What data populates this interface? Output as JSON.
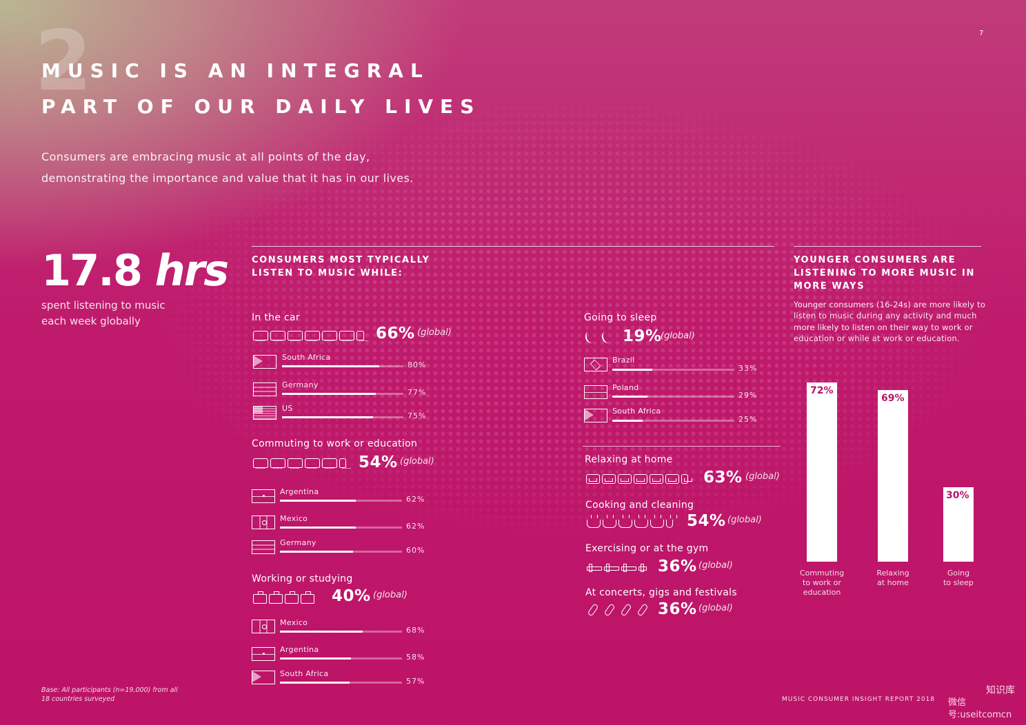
{
  "page": {
    "number": "7",
    "section_number": "2",
    "title_line1": "MUSIC IS AN INTEGRAL",
    "title_line2": "PART OF OUR DAILY LIVES",
    "intro_line1": "Consumers are embracing music at all points of the day,",
    "intro_line2": "demonstrating the importance and value that it has in our lives."
  },
  "headline_stat": {
    "value": "17.8",
    "unit": "hrs",
    "caption_line1": "spent listening to music",
    "caption_line2": "each week globally"
  },
  "activities": {
    "header_line1": "CONSUMERS MOST TYPICALLY",
    "header_line2": "LISTEN TO MUSIC WHILE:",
    "global_suffix": "(global)",
    "car": {
      "label": "In the car",
      "pct": "66%",
      "icon": "car-icon",
      "rows": [
        {
          "country": "South Africa",
          "pct_text": "80%"
        },
        {
          "country": "Germany",
          "pct_text": "77%"
        },
        {
          "country": "US",
          "pct_text": "75%"
        }
      ]
    },
    "commute": {
      "label": "Commuting to work or education",
      "pct": "54%",
      "icon": "train-icon",
      "rows": [
        {
          "country": "Argentina",
          "pct_text": "62%"
        },
        {
          "country": "Mexico",
          "pct_text": "62%"
        },
        {
          "country": "Germany",
          "pct_text": "60%"
        }
      ]
    },
    "working": {
      "label": "Working or studying",
      "pct": "40%",
      "icon": "briefcase-icon",
      "rows": [
        {
          "country": "Mexico",
          "pct_text": "68%"
        },
        {
          "country": "Argentina",
          "pct_text": "58%"
        },
        {
          "country": "South Africa",
          "pct_text": "57%"
        }
      ]
    },
    "sleep": {
      "label": "Going to sleep",
      "pct": "19%",
      "icon": "moon-icon",
      "rows": [
        {
          "country": "Brazil",
          "pct_text": "33%"
        },
        {
          "country": "Poland",
          "pct_text": "29%"
        },
        {
          "country": "South Africa",
          "pct_text": "25%"
        }
      ]
    },
    "relaxing": {
      "label": "Relaxing at home",
      "pct": "63%",
      "icon": "sofa-icon"
    },
    "cooking": {
      "label": "Cooking and cleaning",
      "pct": "54%",
      "icon": "pot-icon"
    },
    "exercise": {
      "label": "Exercising or at the gym",
      "pct": "36%",
      "icon": "dumbbell-icon"
    },
    "concerts": {
      "label": "At concerts, gigs and festivals",
      "pct": "36%",
      "icon": "microphone-icon"
    }
  },
  "younger": {
    "header_line1": "YOUNGER CONSUMERS ARE",
    "header_line2": "LISTENING TO MORE MUSIC IN",
    "header_line3": "MORE WAYS",
    "description": "Younger consumers (16-24s) are more likely to listen to music during any activity and much more likely to listen on their way to work or education or while at work or education."
  },
  "chart_data": [
    {
      "type": "bar",
      "title": "In the car",
      "categories": [
        "South Africa",
        "Germany",
        "US"
      ],
      "values": [
        80,
        77,
        75
      ],
      "unit": "%",
      "global": 66
    },
    {
      "type": "bar",
      "title": "Commuting to work or education",
      "categories": [
        "Argentina",
        "Mexico",
        "Germany"
      ],
      "values": [
        62,
        62,
        60
      ],
      "unit": "%",
      "global": 54
    },
    {
      "type": "bar",
      "title": "Working or studying",
      "categories": [
        "Mexico",
        "Argentina",
        "South Africa"
      ],
      "values": [
        68,
        58,
        57
      ],
      "unit": "%",
      "global": 40
    },
    {
      "type": "bar",
      "title": "Going to sleep",
      "categories": [
        "Brazil",
        "Poland",
        "South Africa"
      ],
      "values": [
        33,
        29,
        25
      ],
      "unit": "%",
      "global": 19
    },
    {
      "type": "bar",
      "title": "YOUNGER CONSUMERS ARE LISTENING TO MORE MUSIC IN MORE WAYS",
      "categories": [
        "Commuting to work or education",
        "Relaxing at home",
        "Going to sleep"
      ],
      "values": [
        72,
        69,
        30
      ],
      "labels": [
        "72%",
        "69%",
        "30%"
      ],
      "unit": "%",
      "ylim": [
        0,
        100
      ]
    }
  ],
  "footer": {
    "base_line1": "Base: All participants (n=19,000) from all",
    "base_line2": "18 countries surveyed",
    "report": "MUSIC CONSUMER INSIGHT REPORT 2018",
    "watermark_line1": "知识库",
    "watermark_line2": "微信号:useitcomcn"
  },
  "colors": {
    "background": "#bd1368",
    "accent": "#ffffff",
    "top_left_tint": "#b9b892"
  }
}
